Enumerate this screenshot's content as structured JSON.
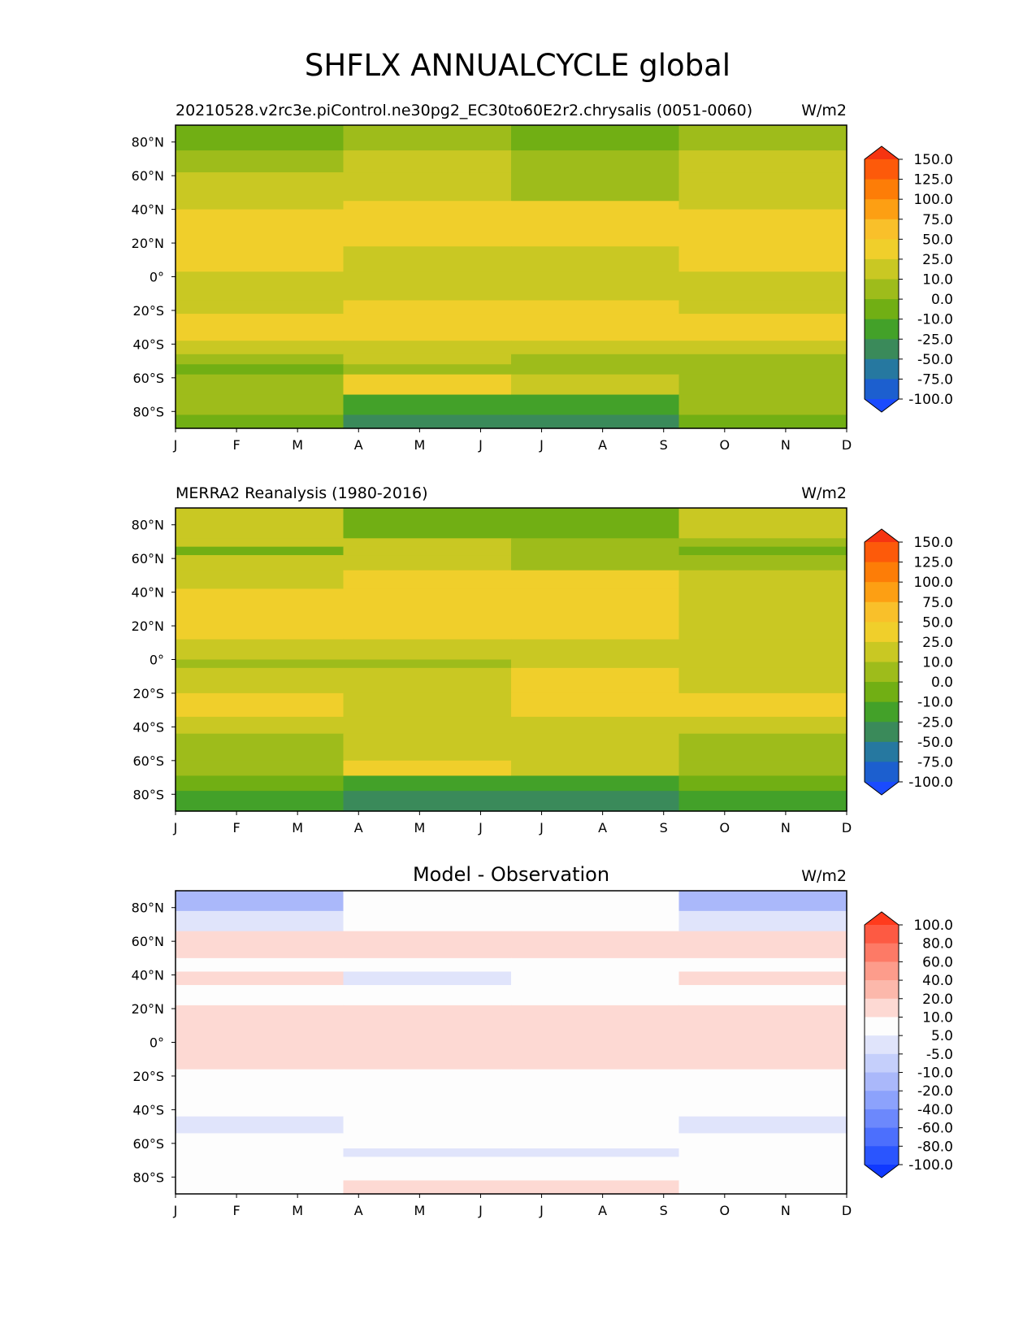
{
  "figure": {
    "title": "SHFLX ANNUALCYCLE global"
  },
  "chart_data": [
    {
      "type": "heatmap",
      "title": "20210528.v2rc3e.piControl.ne30pg2_EC30to60E2r2.chrysalis (0051-0060)",
      "units": "W/m2",
      "x_ticks": [
        "J",
        "F",
        "M",
        "A",
        "M",
        "J",
        "J",
        "A",
        "S",
        "O",
        "N",
        "D"
      ],
      "y_ticks": [
        "80°N",
        "60°N",
        "40°N",
        "20°N",
        "0°",
        "20°S",
        "40°S",
        "60°S",
        "80°S"
      ],
      "y_tick_values": [
        80,
        60,
        40,
        20,
        0,
        -20,
        -40,
        -60,
        -80
      ],
      "ylim": [
        -90,
        90
      ],
      "colorbar_levels": [
        "150.0",
        "125.0",
        "100.0",
        "75.0",
        "50.0",
        "25.0",
        "10.0",
        "0.0",
        "-10.0",
        "-25.0",
        "-50.0",
        "-75.0",
        "-100.0"
      ],
      "colorbar_colors": [
        "#f63411",
        "#fd5a0a",
        "#fd7d07",
        "#fd9f13",
        "#f9c02a",
        "#f0cf2b",
        "#c9c823",
        "#9ebc1b",
        "#71af14",
        "#43a129",
        "#3a8a5a",
        "#2678a0",
        "#1c5fcf",
        "#1a4bfe"
      ],
      "bands": [
        {
          "lat": 90,
          "colors": [
            "#71af14",
            "#9ebc1b",
            "#71af14",
            "#9ebc1b"
          ]
        },
        {
          "lat": 75,
          "colors": [
            "#9ebc1b",
            "#c9c823",
            "#9ebc1b",
            "#c9c823"
          ]
        },
        {
          "lat": 62,
          "colors": [
            "#c9c823",
            "#c9c823",
            "#9ebc1b",
            "#c9c823"
          ]
        },
        {
          "lat": 45,
          "colors": [
            "#c9c823",
            "#f0cf2b",
            "#f0cf2b",
            "#c9c823"
          ]
        },
        {
          "lat": 40,
          "colors": [
            "#f0cf2b",
            "#f0cf2b",
            "#f0cf2b",
            "#f0cf2b"
          ]
        },
        {
          "lat": 18,
          "colors": [
            "#f0cf2b",
            "#c9c823",
            "#c9c823",
            "#f0cf2b"
          ]
        },
        {
          "lat": 3,
          "colors": [
            "#c9c823",
            "#c9c823",
            "#c9c823",
            "#c9c823"
          ]
        },
        {
          "lat": -14,
          "colors": [
            "#c9c823",
            "#f0cf2b",
            "#f0cf2b",
            "#c9c823"
          ]
        },
        {
          "lat": -22,
          "colors": [
            "#f0cf2b",
            "#f0cf2b",
            "#f0cf2b",
            "#f0cf2b"
          ]
        },
        {
          "lat": -38,
          "colors": [
            "#c9c823",
            "#c9c823",
            "#c9c823",
            "#c9c823"
          ]
        },
        {
          "lat": -46,
          "colors": [
            "#9ebc1b",
            "#c9c823",
            "#9ebc1b",
            "#9ebc1b"
          ]
        },
        {
          "lat": -52,
          "colors": [
            "#71af14",
            "#9ebc1b",
            "#9ebc1b",
            "#9ebc1b"
          ]
        },
        {
          "lat": -58,
          "colors": [
            "#9ebc1b",
            "#f0cf2b",
            "#c9c823",
            "#9ebc1b"
          ]
        },
        {
          "lat": -70,
          "colors": [
            "#9ebc1b",
            "#43a129",
            "#43a129",
            "#9ebc1b"
          ]
        },
        {
          "lat": -82,
          "colors": [
            "#71af14",
            "#3a8a5a",
            "#3a8a5a",
            "#71af14"
          ]
        }
      ]
    },
    {
      "type": "heatmap",
      "title": "MERRA2 Reanalysis (1980-2016)",
      "units": "W/m2",
      "x_ticks": [
        "J",
        "F",
        "M",
        "A",
        "M",
        "J",
        "J",
        "A",
        "S",
        "O",
        "N",
        "D"
      ],
      "y_ticks": [
        "80°N",
        "60°N",
        "40°N",
        "20°N",
        "0°",
        "20°S",
        "40°S",
        "60°S",
        "80°S"
      ],
      "y_tick_values": [
        80,
        60,
        40,
        20,
        0,
        -20,
        -40,
        -60,
        -80
      ],
      "ylim": [
        -90,
        90
      ],
      "colorbar_levels": [
        "150.0",
        "125.0",
        "100.0",
        "75.0",
        "50.0",
        "25.0",
        "10.0",
        "0.0",
        "-10.0",
        "-25.0",
        "-50.0",
        "-75.0",
        "-100.0"
      ],
      "colorbar_colors": [
        "#f63411",
        "#fd5a0a",
        "#fd7d07",
        "#fd9f13",
        "#f9c02a",
        "#f0cf2b",
        "#c9c823",
        "#9ebc1b",
        "#71af14",
        "#43a129",
        "#3a8a5a",
        "#2678a0",
        "#1c5fcf",
        "#1a4bfe"
      ],
      "bands": [
        {
          "lat": 90,
          "colors": [
            "#c9c823",
            "#71af14",
            "#71af14",
            "#c9c823"
          ]
        },
        {
          "lat": 72,
          "colors": [
            "#c9c823",
            "#c9c823",
            "#9ebc1b",
            "#9ebc1b"
          ]
        },
        {
          "lat": 67,
          "colors": [
            "#71af14",
            "#c9c823",
            "#9ebc1b",
            "#71af14"
          ]
        },
        {
          "lat": 62,
          "colors": [
            "#c9c823",
            "#c9c823",
            "#9ebc1b",
            "#9ebc1b"
          ]
        },
        {
          "lat": 53,
          "colors": [
            "#c9c823",
            "#f0cf2b",
            "#f0cf2b",
            "#c9c823"
          ]
        },
        {
          "lat": 42,
          "colors": [
            "#f0cf2b",
            "#f0cf2b",
            "#f0cf2b",
            "#c9c823"
          ]
        },
        {
          "lat": 12,
          "colors": [
            "#c9c823",
            "#c9c823",
            "#c9c823",
            "#c9c823"
          ]
        },
        {
          "lat": 0,
          "colors": [
            "#9ebc1b",
            "#9ebc1b",
            "#c9c823",
            "#c9c823"
          ]
        },
        {
          "lat": -5,
          "colors": [
            "#c9c823",
            "#c9c823",
            "#f0cf2b",
            "#c9c823"
          ]
        },
        {
          "lat": -20,
          "colors": [
            "#f0cf2b",
            "#c9c823",
            "#f0cf2b",
            "#f0cf2b"
          ]
        },
        {
          "lat": -34,
          "colors": [
            "#c9c823",
            "#c9c823",
            "#c9c823",
            "#c9c823"
          ]
        },
        {
          "lat": -44,
          "colors": [
            "#9ebc1b",
            "#c9c823",
            "#c9c823",
            "#9ebc1b"
          ]
        },
        {
          "lat": -60,
          "colors": [
            "#9ebc1b",
            "#f0cf2b",
            "#c9c823",
            "#9ebc1b"
          ]
        },
        {
          "lat": -69,
          "colors": [
            "#71af14",
            "#43a129",
            "#43a129",
            "#71af14"
          ]
        },
        {
          "lat": -78,
          "colors": [
            "#43a129",
            "#3a8a5a",
            "#3a8a5a",
            "#43a129"
          ]
        }
      ]
    },
    {
      "type": "heatmap",
      "title": "Model - Observation",
      "units": "W/m2",
      "x_ticks": [
        "J",
        "F",
        "M",
        "A",
        "M",
        "J",
        "J",
        "A",
        "S",
        "O",
        "N",
        "D"
      ],
      "y_ticks": [
        "80°N",
        "60°N",
        "40°N",
        "20°N",
        "0°",
        "20°S",
        "40°S",
        "60°S",
        "80°S"
      ],
      "y_tick_values": [
        80,
        60,
        40,
        20,
        0,
        -20,
        -40,
        -60,
        -80
      ],
      "ylim": [
        -90,
        90
      ],
      "colorbar_levels": [
        "100.0",
        "80.0",
        "60.0",
        "40.0",
        "20.0",
        "10.0",
        "5.0",
        "-5.0",
        "-10.0",
        "-20.0",
        "-40.0",
        "-60.0",
        "-80.0",
        "-100.0"
      ],
      "colorbar_colors": [
        "#ff3b1d",
        "#fd5a43",
        "#fd7a66",
        "#fd9c8b",
        "#fcb8ab",
        "#fdd9d3",
        "#fdfdfd",
        "#e0e4fb",
        "#c5cffb",
        "#aab8fa",
        "#8ca2fc",
        "#6c88fc",
        "#4c6ffd",
        "#2a55fe",
        "#1039ff"
      ],
      "bands": [
        {
          "lat": 90,
          "colors": [
            "#aab8fa",
            "#fdfdfd",
            "#fdfdfd",
            "#aab8fa"
          ]
        },
        {
          "lat": 78,
          "colors": [
            "#e0e4fb",
            "#fdfdfd",
            "#fdfdfd",
            "#e0e4fb"
          ]
        },
        {
          "lat": 66,
          "colors": [
            "#fdd9d3",
            "#fdd9d3",
            "#fdd9d3",
            "#fdd9d3"
          ]
        },
        {
          "lat": 50,
          "colors": [
            "#fdfdfd",
            "#fdfdfd",
            "#fdfdfd",
            "#fdfdfd"
          ]
        },
        {
          "lat": 42,
          "colors": [
            "#fdd9d3",
            "#e0e4fb",
            "#fdfdfd",
            "#fdd9d3"
          ]
        },
        {
          "lat": 34,
          "colors": [
            "#fdfdfd",
            "#fdfdfd",
            "#fdfdfd",
            "#fdfdfd"
          ]
        },
        {
          "lat": 22,
          "colors": [
            "#fdd9d3",
            "#fdd9d3",
            "#fdd9d3",
            "#fdd9d3"
          ]
        },
        {
          "lat": -16,
          "colors": [
            "#fdfdfd",
            "#fdfdfd",
            "#fdfdfd",
            "#fdfdfd"
          ]
        },
        {
          "lat": -44,
          "colors": [
            "#e0e4fb",
            "#fdfdfd",
            "#fdfdfd",
            "#e0e4fb"
          ]
        },
        {
          "lat": -54,
          "colors": [
            "#fdfdfd",
            "#fdfdfd",
            "#fdfdfd",
            "#fdfdfd"
          ]
        },
        {
          "lat": -63,
          "colors": [
            "#fdfdfd",
            "#e0e4fb",
            "#e0e4fb",
            "#fdfdfd"
          ]
        },
        {
          "lat": -68,
          "colors": [
            "#fdfdfd",
            "#fdfdfd",
            "#fdfdfd",
            "#fdfdfd"
          ]
        },
        {
          "lat": -82,
          "colors": [
            "#fdfdfd",
            "#fdd9d3",
            "#fdd9d3",
            "#fdfdfd"
          ]
        }
      ]
    }
  ]
}
